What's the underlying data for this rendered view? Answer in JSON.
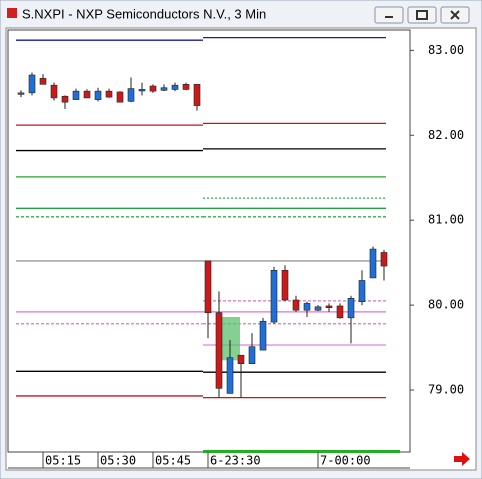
{
  "window_title": "S.NXPI - NXP Semiconductors N.V., 3 Min",
  "chart_data": {
    "type": "candlestick",
    "categories": [
      null,
      null,
      "05:15",
      null,
      null,
      null,
      null,
      "05:30",
      null,
      null,
      null,
      null,
      "05:45",
      null,
      null,
      null,
      null,
      "6-23:30",
      null,
      null,
      null,
      null,
      null,
      null,
      null,
      null,
      null,
      "7-00:00",
      null,
      null,
      null,
      null,
      null,
      null
    ],
    "open": [
      82.49,
      82.5,
      82.67,
      82.59,
      82.46,
      82.42,
      82.52,
      82.42,
      82.52,
      82.51,
      82.4,
      82.53,
      82.58,
      82.53,
      82.54,
      82.6,
      82.6,
      80.52,
      79.91,
      78.96,
      79.41,
      79.31,
      79.47,
      79.8,
      80.41,
      80.06,
      79.94,
      79.94,
      79.99,
      79.99,
      79.85,
      80.04,
      80.32,
      80.62
    ],
    "high": [
      82.53,
      82.74,
      82.72,
      82.62,
      82.47,
      82.55,
      82.54,
      82.56,
      82.55,
      82.52,
      82.68,
      82.62,
      82.6,
      82.6,
      82.62,
      82.62,
      82.6,
      80.52,
      80.16,
      79.59,
      79.41,
      79.67,
      79.85,
      80.45,
      80.47,
      80.11,
      80.04,
      80.0,
      80.02,
      80.02,
      80.11,
      80.41,
      80.69,
      80.65
    ],
    "low": [
      82.45,
      82.47,
      82.6,
      82.41,
      82.31,
      82.42,
      82.44,
      82.4,
      82.44,
      82.39,
      82.39,
      82.47,
      82.5,
      82.52,
      82.52,
      82.53,
      82.29,
      79.61,
      78.91,
      78.96,
      78.91,
      79.31,
      79.47,
      79.78,
      80.05,
      79.92,
      79.86,
      79.93,
      79.92,
      79.84,
      79.55,
      80.0,
      80.32,
      80.29
    ],
    "close": [
      82.5,
      82.71,
      82.6,
      82.44,
      82.39,
      82.52,
      82.44,
      82.52,
      82.45,
      82.39,
      82.55,
      82.54,
      82.52,
      82.56,
      82.59,
      82.54,
      82.35,
      79.91,
      79.02,
      79.38,
      79.31,
      79.51,
      79.81,
      80.41,
      80.06,
      79.94,
      80.02,
      79.98,
      79.97,
      79.85,
      80.08,
      80.29,
      80.66,
      80.46
    ],
    "up_color": "#1f6fd6",
    "down_color": "#cc1a1a",
    "ylim": [
      78.27,
      83.24
    ],
    "yticks": [
      {
        "value": 79,
        "label": "79.00"
      },
      {
        "value": 80,
        "label": "80.00"
      },
      {
        "value": 81,
        "label": "81.00"
      },
      {
        "value": 82,
        "label": "82.00"
      },
      {
        "value": 83,
        "label": "83.00"
      }
    ],
    "levels": [
      {
        "color": "#1a1aa0",
        "dash": "none",
        "values": [
          83.12,
          83.15
        ]
      },
      {
        "color": "#c01818",
        "dash": "none",
        "values": [
          82.12,
          82.14
        ]
      },
      {
        "color": "#000000",
        "dash": "none",
        "values": [
          81.82,
          81.84
        ]
      },
      {
        "color": "#2aa02a",
        "dash": "none",
        "values": [
          81.51,
          81.51
        ]
      },
      {
        "color": "#2ab050",
        "dash": "2,2",
        "values": [
          null,
          81.26
        ]
      },
      {
        "color": "#20a040",
        "dash": "none",
        "values": [
          81.14,
          81.14
        ]
      },
      {
        "color": "#2ab050",
        "dash": "3,2",
        "values": [
          81.04,
          81.04
        ]
      },
      {
        "color": "#999999",
        "dash": "none",
        "values": [
          80.52,
          80.52
        ]
      },
      {
        "color": "#e070c0",
        "dash": "3,2",
        "values": [
          null,
          80.05
        ]
      },
      {
        "color": "#e070e0",
        "dash": "none",
        "values": [
          79.92,
          79.92
        ]
      },
      {
        "color": "#e070c0",
        "dash": "3,2",
        "values": [
          79.78,
          79.78
        ]
      },
      {
        "color": "#e080e0",
        "dash": "none",
        "values": [
          null,
          79.53
        ]
      },
      {
        "color": "#000000",
        "dash": "none",
        "values": [
          79.22,
          79.21
        ]
      },
      {
        "color": "#c01818",
        "dash": "none",
        "values": [
          78.93,
          78.91
        ]
      }
    ],
    "zone": {
      "color": "#5cbf6c",
      "from": [
        79.86,
        79.35
      ]
    }
  }
}
